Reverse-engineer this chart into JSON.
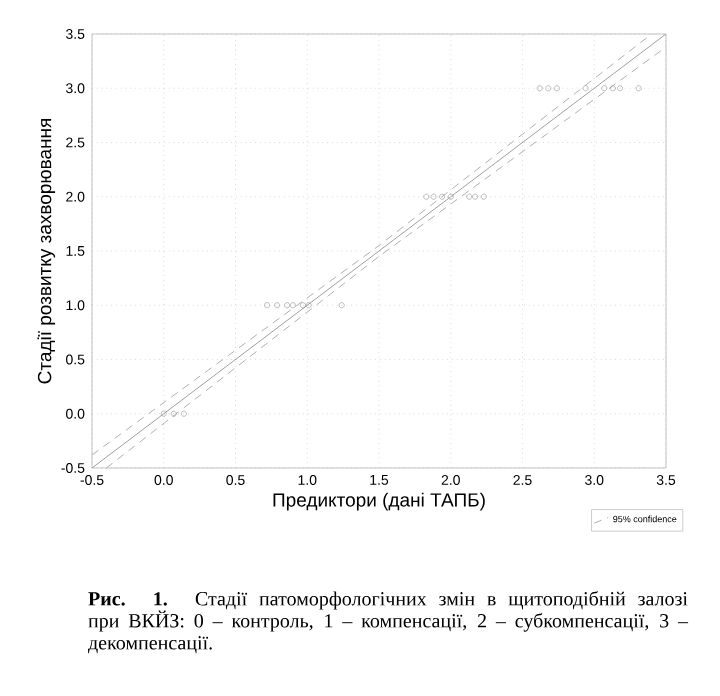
{
  "chart_data": {
    "type": "scatter",
    "xlabel": "Предиктори (дані ТАПБ)",
    "ylabel": "Стадії розвитку захворювання",
    "xlim": [
      -0.5,
      3.5
    ],
    "ylim": [
      -0.5,
      3.5
    ],
    "xticks": [
      {
        "value": -0.5,
        "label": "-0.5"
      },
      {
        "value": 0,
        "label": "0.0"
      },
      {
        "value": 0.5,
        "label": "0.5"
      },
      {
        "value": 1,
        "label": "1.0"
      },
      {
        "value": 1.5,
        "label": "1.5"
      },
      {
        "value": 2,
        "label": "2.0"
      },
      {
        "value": 2.5,
        "label": "2.5"
      },
      {
        "value": 3,
        "label": "3.0"
      },
      {
        "value": 3.5,
        "label": "3.5"
      }
    ],
    "yticks": [
      {
        "value": -0.5,
        "label": "-0.5"
      },
      {
        "value": 0,
        "label": "0.0"
      },
      {
        "value": 0.5,
        "label": "0.5"
      },
      {
        "value": 1,
        "label": "1.0"
      },
      {
        "value": 1.5,
        "label": "1.5"
      },
      {
        "value": 2,
        "label": "2.0"
      },
      {
        "value": 2.5,
        "label": "2.5"
      },
      {
        "value": 3,
        "label": "3.0"
      },
      {
        "value": 3.5,
        "label": "3.5"
      }
    ],
    "grid": true,
    "legend": "bottom right",
    "series": [
      {
        "marker": "circle",
        "color": "#909090",
        "x": [
          0.0,
          0.07,
          0.14,
          0.72,
          0.79,
          0.86,
          0.9,
          0.97,
          1.01,
          1.24,
          1.83,
          1.88,
          1.94,
          2.0,
          2.13,
          2.17,
          2.23,
          2.62,
          2.68,
          2.74,
          2.94,
          3.07,
          3.13,
          3.18,
          3.31
        ],
        "values": [
          0,
          0,
          0,
          1,
          1,
          1,
          1,
          1,
          1,
          1,
          2,
          2,
          2,
          2,
          2,
          2,
          2,
          3,
          3,
          3,
          3,
          3,
          3,
          3,
          3
        ]
      },
      {
        "type": "line",
        "marker": "none",
        "color": "#a0a0a0",
        "line_style": "solid",
        "x": [
          -0.5,
          3.5
        ],
        "values": [
          -0.5,
          3.5
        ]
      },
      {
        "type": "line",
        "marker": "none",
        "name": "95% confidence",
        "color": "#b0b0b0",
        "line_style": "dashed",
        "x": [
          -0.5,
          1.5,
          3.4
        ],
        "values": [
          -0.38,
          1.55,
          3.5
        ]
      },
      {
        "type": "line",
        "marker": "none",
        "color": "#b0b0b0",
        "line_style": "dashed",
        "x": [
          -0.4,
          1.5,
          3.5
        ],
        "values": [
          -0.5,
          1.45,
          3.38
        ]
      }
    ],
    "annotations": [
      "**Рис. 1.** Стадії патоморфологічних змін в щитоподібній залозі при ВКЙЗ: 0 – контроль, 1 – компенсації, 2 – субкомпенсації, 3 – декомпенсації."
    ]
  }
}
